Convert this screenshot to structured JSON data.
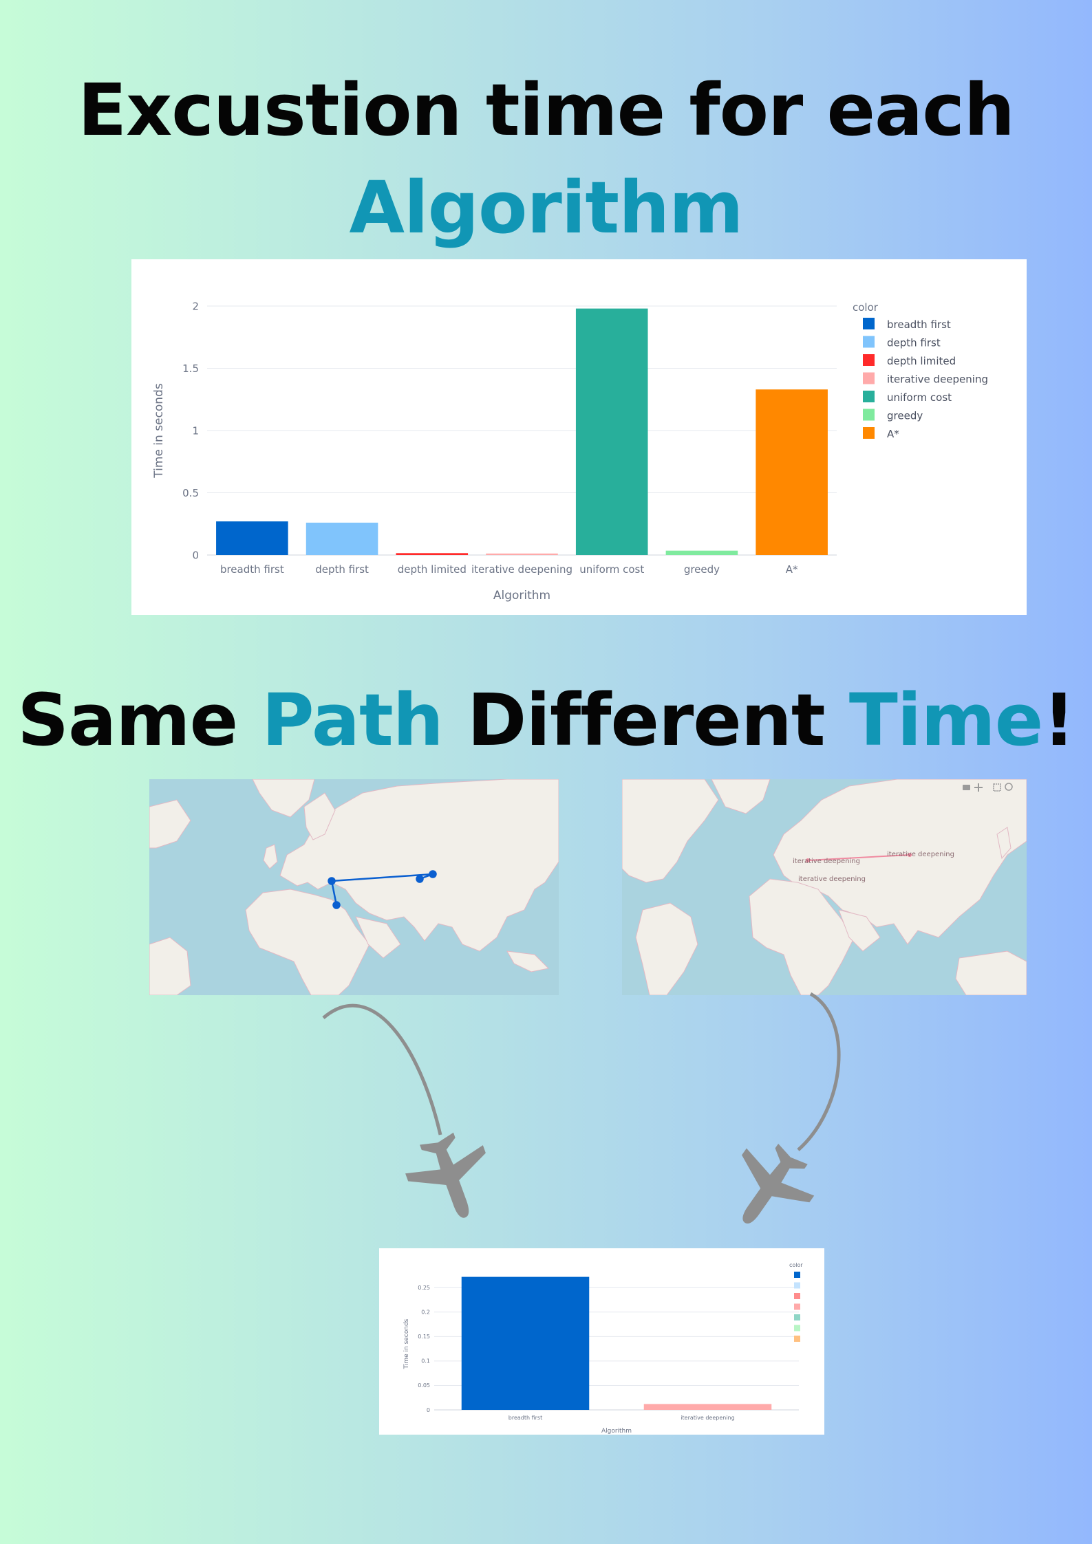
{
  "heading1": {
    "line1": "Excustion time for each",
    "line2": "Algorithm"
  },
  "heading2": {
    "w1": "Same",
    "w2": "Path",
    "w3": "Different",
    "w4": "Time",
    "w5": "!"
  },
  "colors": {
    "teal": "#1196b5",
    "plane": "#8e8e8e"
  },
  "chart_data": [
    {
      "type": "bar",
      "categories": [
        "breadth first",
        "depth first",
        "depth limited",
        "iterative deepening",
        "uniform cost",
        "greedy",
        "A*"
      ],
      "values": [
        0.27,
        0.26,
        0.015,
        0.012,
        1.98,
        0.035,
        1.33
      ],
      "colors": [
        "#0066cc",
        "#80c4fc",
        "#ff2a2a",
        "#ffaaaa",
        "#28af9b",
        "#7fea9e",
        "#ff8800"
      ],
      "xlabel": "Algorithm",
      "ylabel": "Time in seconds",
      "ylim": [
        0,
        2
      ],
      "yticks": [
        "0",
        "0.5",
        "1",
        "1.5",
        "2"
      ],
      "ytick_values": [
        0,
        0.5,
        1,
        1.5,
        2
      ],
      "legend_title": "color",
      "legend": [
        "breadth first",
        "depth first",
        "depth limited",
        "iterative deepening",
        "uniform cost",
        "greedy",
        "A*"
      ],
      "legend_position": "right",
      "grid": true
    },
    {
      "type": "bar",
      "categories": [
        "breadth first",
        "iterative deepening"
      ],
      "values": [
        0.272,
        0.012
      ],
      "colors": [
        "#0066cc",
        "#ffaaaa"
      ],
      "xlabel": "Algorithm",
      "ylabel": "Time in seconds",
      "ylim": [
        0,
        0.27
      ],
      "yticks": [
        "0",
        "0.05",
        "0.1",
        "0.15",
        "0.2",
        "0.25"
      ],
      "ytick_values": [
        0,
        0.05,
        0.1,
        0.15,
        0.2,
        0.25
      ],
      "legend_title": "color",
      "legend_colors": [
        "#0066cc",
        "#c4e3fe",
        "#ff8c8c",
        "#ffaaaa",
        "#8fd6c6",
        "#b8f5c5",
        "#ffc080"
      ],
      "legend_position": "right",
      "grid": true
    }
  ],
  "map_left": {
    "kind": "route-map"
  },
  "map_right": {
    "labels": [
      "iterative deepening",
      "iterative deepening",
      "iterative deepening"
    ]
  }
}
